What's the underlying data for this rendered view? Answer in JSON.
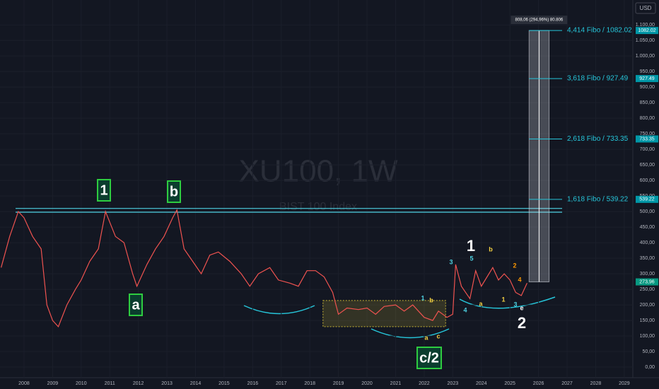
{
  "chart_data": {
    "type": "line",
    "watermark": "XU100, 1W",
    "watermark_subtitle": "BIST 100 Index",
    "currency": "USD",
    "xlim": [
      2007.16,
      2029.3
    ],
    "ylim": [
      -34,
      1180
    ],
    "xticks": [
      2008,
      2009,
      2010,
      2011,
      2012,
      2013,
      2014,
      2015,
      2016,
      2017,
      2018,
      2019,
      2020,
      2021,
      2022,
      2023,
      2024,
      2025,
      2026,
      2027,
      2028,
      2029
    ],
    "yticks": [
      {
        "value": 1100,
        "label": "1.100,00"
      },
      {
        "value": 1050,
        "label": "1.050,00"
      },
      {
        "value": 1000,
        "label": "1.000,00"
      },
      {
        "value": 950,
        "label": "950,00"
      },
      {
        "value": 900,
        "label": "900,00"
      },
      {
        "value": 850,
        "label": "850,00"
      },
      {
        "value": 800,
        "label": "800,00"
      },
      {
        "value": 750,
        "label": "750,00"
      },
      {
        "value": 700,
        "label": "700,00"
      },
      {
        "value": 650,
        "label": "650,00"
      },
      {
        "value": 600,
        "label": "600,00"
      },
      {
        "value": 550,
        "label": "550,00"
      },
      {
        "value": 500,
        "label": "500,00"
      },
      {
        "value": 450,
        "label": "450,00"
      },
      {
        "value": 400,
        "label": "400,00"
      },
      {
        "value": 350,
        "label": "350,00"
      },
      {
        "value": 300,
        "label": "300,00"
      },
      {
        "value": 250,
        "label": "250,00"
      },
      {
        "value": 200,
        "label": "200,00"
      },
      {
        "value": 150,
        "label": "150,00"
      },
      {
        "value": 100,
        "label": "100,00"
      },
      {
        "value": 50,
        "label": "50,00"
      },
      {
        "value": 0,
        "label": "0,00"
      }
    ],
    "x": [
      2007.2,
      2007.5,
      2007.8,
      2008.0,
      2008.3,
      2008.6,
      2008.8,
      2009.0,
      2009.2,
      2009.5,
      2009.8,
      2010.0,
      2010.3,
      2010.6,
      2010.85,
      2011.2,
      2011.5,
      2011.8,
      2011.95,
      2012.3,
      2012.6,
      2012.9,
      2013.2,
      2013.35,
      2013.6,
      2013.9,
      2014.2,
      2014.5,
      2014.8,
      2015.2,
      2015.6,
      2015.9,
      2016.2,
      2016.6,
      2016.9,
      2017.3,
      2017.6,
      2017.9,
      2018.2,
      2018.5,
      2018.8,
      2019.0,
      2019.3,
      2019.7,
      2020.0,
      2020.3,
      2020.6,
      2021.0,
      2021.3,
      2021.6,
      2021.9,
      2022.0,
      2022.3,
      2022.5,
      2022.8,
      2023.0,
      2023.1,
      2023.3,
      2023.6,
      2023.8,
      2024.0,
      2024.2,
      2024.4,
      2024.6,
      2024.8,
      2025.0,
      2025.2,
      2025.4,
      2025.6
    ],
    "series": [
      {
        "color": "#ef5350",
        "values": [
          320,
          420,
          500,
          480,
          420,
          380,
          200,
          150,
          130,
          200,
          250,
          280,
          340,
          380,
          500,
          420,
          400,
          300,
          260,
          330,
          380,
          420,
          480,
          505,
          380,
          340,
          300,
          360,
          370,
          340,
          300,
          260,
          300,
          320,
          280,
          270,
          260,
          310,
          310,
          290,
          240,
          170,
          190,
          185,
          190,
          170,
          195,
          200,
          180,
          200,
          170,
          160,
          150,
          180,
          160,
          170,
          330,
          260,
          220,
          310,
          260,
          290,
          320,
          280,
          300,
          280,
          240,
          230,
          270
        ]
      }
    ],
    "resistance": [
      498,
      510
    ],
    "range_box": {
      "x": [
        2018.46,
        2022.75
      ],
      "y": [
        130,
        214
      ],
      "color": "#c9b535"
    },
    "measure": {
      "x": [
        2025.67,
        2026.37
      ],
      "from": 273.96,
      "to": 1082.02,
      "label": "808,06 (294,96%) 80.806"
    },
    "fibs": [
      {
        "value": 539.22,
        "label": "1,618 Fibo / 539.22",
        "tag": "539.22"
      },
      {
        "value": 733.35,
        "label": "2,618 Fibo / 733.35",
        "tag": "733.35"
      },
      {
        "value": 927.49,
        "label": "3,618 Fibo / 927.49",
        "tag": "927.49"
      },
      {
        "value": 1082.02,
        "label": "4,414 Fibo / 1082.02",
        "tag": "1082.02"
      }
    ],
    "last_price": {
      "value": 273.96,
      "label": "273,96"
    },
    "annotations": [
      {
        "text": "1",
        "color": "#ffffff",
        "boxed": true
      },
      {
        "text": "b",
        "color": "#ffffff",
        "boxed": true
      },
      {
        "text": "a",
        "color": "#ffffff",
        "boxed": true
      },
      {
        "text": "c/2",
        "color": "#ffffff",
        "boxed": true
      },
      {
        "text": "1",
        "color": "#ffffff",
        "boxed": false
      },
      {
        "text": "2",
        "color": "#ffffff",
        "boxed": false
      },
      {
        "text": "3",
        "color": "#4dd0e1",
        "boxed": false
      },
      {
        "text": "5",
        "color": "#4dd0e1",
        "boxed": false
      },
      {
        "text": "4",
        "color": "#4dd0e1",
        "boxed": false
      },
      {
        "text": "b",
        "color": "#f5d142",
        "boxed": false
      },
      {
        "text": "a",
        "color": "#f5d142",
        "boxed": false
      },
      {
        "text": "2",
        "color": "#ff9800",
        "boxed": false
      },
      {
        "text": "4",
        "color": "#ff9800",
        "boxed": false
      },
      {
        "text": "1",
        "color": "#f5d142",
        "boxed": false
      },
      {
        "text": "3",
        "color": "#4dd0e1",
        "boxed": false
      },
      {
        "text": "e",
        "color": "#ffffff",
        "boxed": false
      },
      {
        "text": "1",
        "color": "#4dd0e1",
        "boxed": false
      },
      {
        "text": "b",
        "color": "#f5d142",
        "boxed": false
      },
      {
        "text": "a",
        "color": "#f5d142",
        "boxed": false
      },
      {
        "text": "c",
        "color": "#f5d142",
        "boxed": false
      }
    ]
  }
}
